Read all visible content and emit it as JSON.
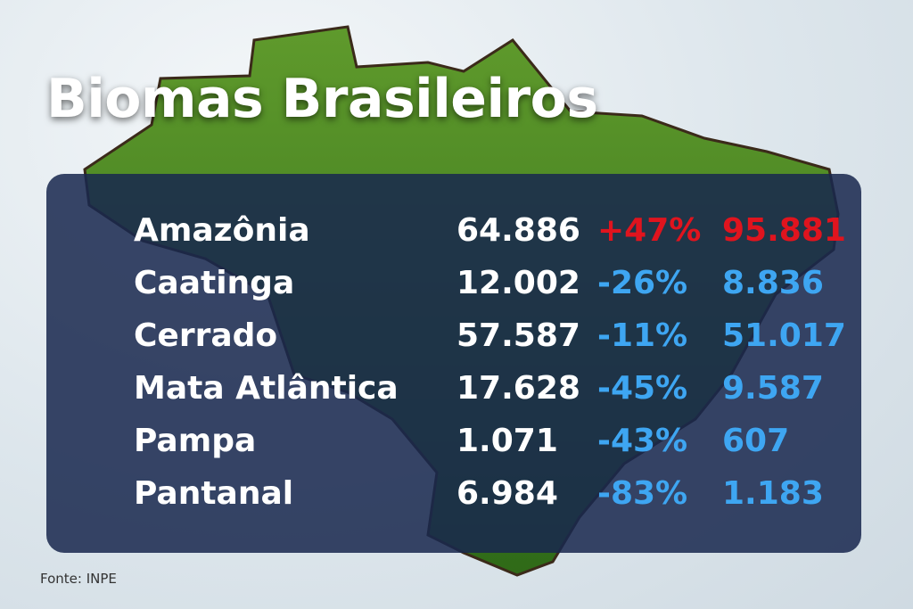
{
  "title": "Biomas Brasileiros",
  "table": {
    "rows": [
      [
        "Amazônia",
        "64.886",
        "+47%",
        "95.881"
      ],
      [
        "Caatinga",
        "12.002",
        "-26%",
        "8.836"
      ],
      [
        "Cerrado",
        "57.587",
        "-11%",
        "51.017"
      ],
      [
        "Mata Atlântica",
        "17.628",
        "-45%",
        "9.587"
      ],
      [
        "Pampa",
        "1.071",
        "-43%",
        "607"
      ],
      [
        "Pantanal",
        "6.984",
        "-83%",
        "1.183"
      ]
    ]
  },
  "source": "Fonte: INPE"
}
